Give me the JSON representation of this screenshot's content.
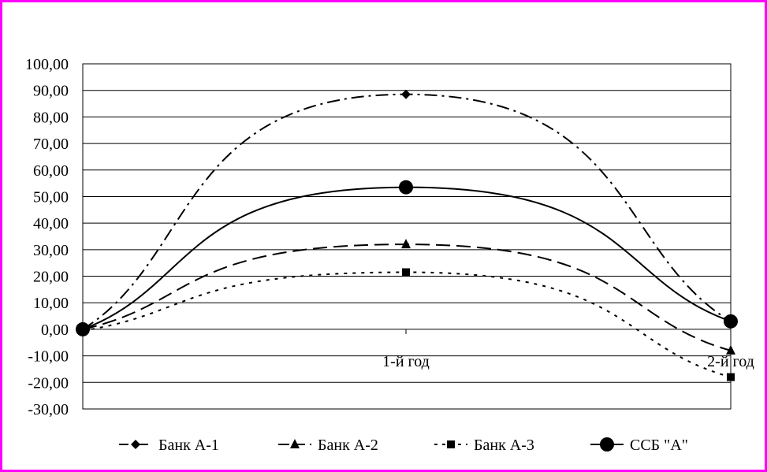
{
  "chart_data": {
    "type": "line",
    "categories": [
      "",
      "1-й год",
      "2-й год"
    ],
    "series": [
      {
        "name": "Банк А-1",
        "values": [
          0.0,
          88.5,
          3.0
        ],
        "marker": "diamond",
        "dash": "dashdot"
      },
      {
        "name": "Банк А-2",
        "values": [
          0.0,
          32.0,
          -8.0
        ],
        "marker": "triangle",
        "dash": "longdash"
      },
      {
        "name": "Банк А-3",
        "values": [
          -0.5,
          21.5,
          -18.0
        ],
        "marker": "square",
        "dash": "dotted"
      },
      {
        "name": "ССБ \"А\"",
        "values": [
          0.0,
          53.5,
          3.0
        ],
        "marker": "circle",
        "dash": "solid"
      }
    ],
    "ylim": [
      -30,
      100
    ],
    "y_ticks": [
      "100,00",
      "90,00",
      "80,00",
      "70,00",
      "60,00",
      "50,00",
      "40,00",
      "30,00",
      "20,00",
      "10,00",
      "0,00",
      "-10,00",
      "-20,00",
      "-30,00"
    ],
    "y_tick_values": [
      100,
      90,
      80,
      70,
      60,
      50,
      40,
      30,
      20,
      10,
      0,
      -10,
      -20,
      -30
    ],
    "grid": true,
    "legend_position": "bottom",
    "border_color": "#ff00ff",
    "line_color": "#000000",
    "title": "",
    "xlabel": "",
    "ylabel": ""
  }
}
